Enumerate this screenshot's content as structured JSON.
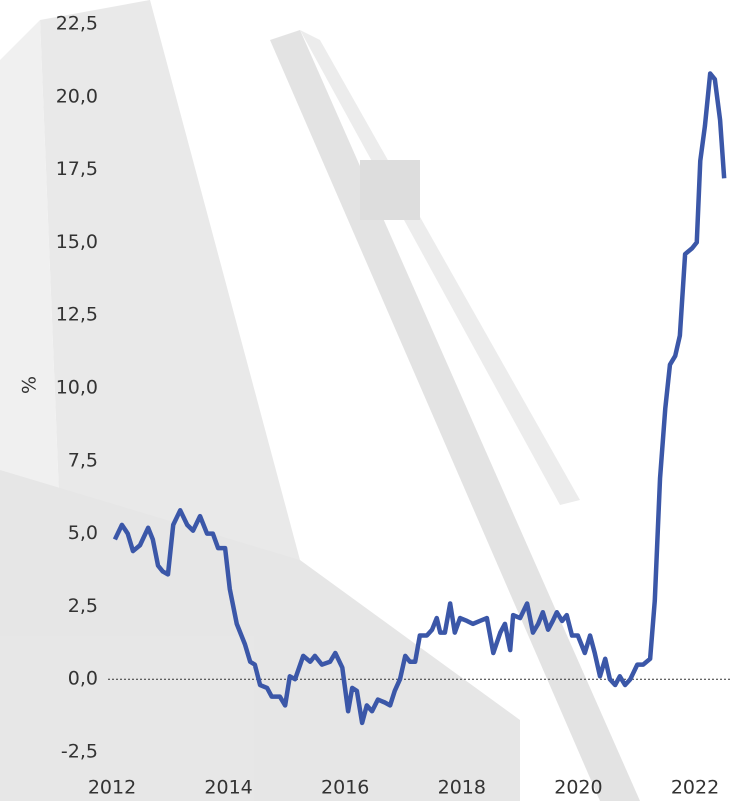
{
  "chart_data": {
    "type": "line",
    "y_label": "%",
    "xlim": [
      2012,
      2022.6
    ],
    "ylim": [
      -2.5,
      22.5
    ],
    "xticks": [
      2012,
      2014,
      2016,
      2018,
      2020,
      2022
    ],
    "yticks": [
      {
        "value": -2.5,
        "label": "-2,5"
      },
      {
        "value": 0,
        "label": "0,0"
      },
      {
        "value": 2.5,
        "label": "2,5"
      },
      {
        "value": 5,
        "label": "5,0"
      },
      {
        "value": 7.5,
        "label": "7,5"
      },
      {
        "value": 10,
        "label": "10,0"
      },
      {
        "value": 12.5,
        "label": "12,5"
      },
      {
        "value": 15,
        "label": "15,0"
      },
      {
        "value": 17.5,
        "label": "17,5"
      },
      {
        "value": 20,
        "label": "20,0"
      },
      {
        "value": 22.5,
        "label": "22,5"
      }
    ],
    "reference_line": 0,
    "series": [
      {
        "color": "#3b57a8",
        "x": [
          2012.05,
          2012.17,
          2012.27,
          2012.36,
          2012.48,
          2012.62,
          2012.7,
          2012.79,
          2012.87,
          2012.96,
          2013.05,
          2013.17,
          2013.29,
          2013.39,
          2013.51,
          2013.63,
          2013.73,
          2013.82,
          2013.94,
          2014.02,
          2014.14,
          2014.28,
          2014.37,
          2014.45,
          2014.54,
          2014.66,
          2014.74,
          2014.88,
          2014.97,
          2015.05,
          2015.14,
          2015.28,
          2015.4,
          2015.48,
          2015.6,
          2015.74,
          2015.83,
          2015.95,
          2016.05,
          2016.12,
          2016.2,
          2016.29,
          2016.37,
          2016.46,
          2016.56,
          2016.68,
          2016.77,
          2016.85,
          2016.94,
          2017.03,
          2017.11,
          2017.2,
          2017.28,
          2017.4,
          2017.49,
          2017.57,
          2017.63,
          2017.71,
          2017.8,
          2017.88,
          2017.97,
          2018.09,
          2018.19,
          2018.31,
          2018.43,
          2018.54,
          2018.66,
          2018.74,
          2018.83,
          2018.88,
          2019.0,
          2019.12,
          2019.22,
          2019.31,
          2019.39,
          2019.48,
          2019.56,
          2019.63,
          2019.72,
          2019.8,
          2019.89,
          2019.99,
          2020.11,
          2020.2,
          2020.28,
          2020.37,
          2020.46,
          2020.54,
          2020.63,
          2020.71,
          2020.8,
          2020.89,
          2021.01,
          2021.11,
          2021.23,
          2021.31,
          2021.4,
          2021.49,
          2021.57,
          2021.66,
          2021.74,
          2021.83,
          2021.95,
          2022.03,
          2022.09,
          2022.17,
          2022.26,
          2022.34,
          2022.43,
          2022.5
        ],
        "values": [
          4.8,
          5.3,
          5.0,
          4.4,
          4.6,
          5.2,
          4.8,
          3.9,
          3.7,
          3.6,
          5.3,
          5.8,
          5.3,
          5.1,
          5.6,
          5.0,
          5.0,
          4.5,
          4.5,
          3.1,
          1.9,
          1.2,
          0.6,
          0.5,
          -0.2,
          -0.3,
          -0.6,
          -0.6,
          -0.9,
          0.1,
          0.0,
          0.8,
          0.6,
          0.8,
          0.5,
          0.6,
          0.9,
          0.4,
          -1.1,
          -0.3,
          -0.4,
          -1.5,
          -0.9,
          -1.1,
          -0.7,
          -0.8,
          -0.9,
          -0.4,
          0.0,
          0.8,
          0.6,
          0.6,
          1.5,
          1.5,
          1.7,
          2.1,
          1.6,
          1.6,
          2.6,
          1.6,
          2.1,
          2.0,
          1.9,
          2.0,
          2.1,
          0.9,
          1.6,
          1.9,
          1.0,
          2.2,
          2.1,
          2.6,
          1.6,
          1.9,
          2.3,
          1.7,
          2.0,
          2.3,
          2.0,
          2.2,
          1.5,
          1.5,
          0.9,
          1.5,
          0.9,
          0.1,
          0.7,
          0.0,
          -0.2,
          0.1,
          -0.2,
          0.0,
          0.5,
          0.5,
          0.7,
          2.7,
          6.9,
          9.3,
          10.8,
          11.1,
          11.8,
          14.6,
          14.8,
          15.0,
          17.8,
          19.0,
          20.8,
          20.6,
          19.2,
          17.2
        ]
      }
    ]
  }
}
